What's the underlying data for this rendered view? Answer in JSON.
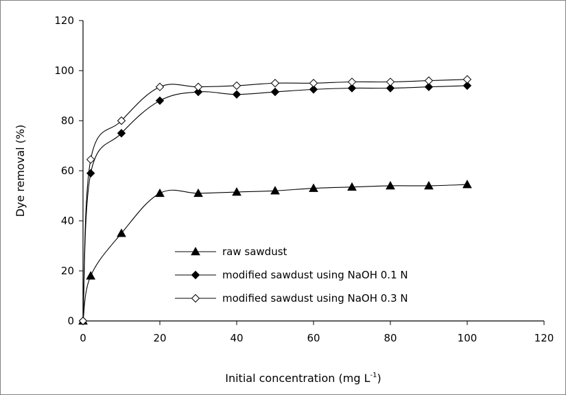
{
  "chart_data": {
    "type": "line",
    "title": "",
    "xlabel": "Initial concentration (mg L",
    "xlabel_sup": "-1",
    "xlabel_tail": ")",
    "ylabel": "Dye removal (%)",
    "xlim": [
      0,
      120
    ],
    "ylim": [
      0,
      120
    ],
    "xticks": [
      "0",
      "20",
      "40",
      "60",
      "80",
      "100",
      "120"
    ],
    "yticks": [
      "0",
      "20",
      "40",
      "60",
      "80",
      "100",
      "120"
    ],
    "grid": false,
    "legend_position": "bottom-center",
    "x": [
      0,
      2,
      10,
      20,
      30,
      40,
      50,
      60,
      70,
      80,
      90,
      100
    ],
    "series": [
      {
        "name": "raw sawdust",
        "marker": "filled-triangle",
        "values": [
          0,
          18,
          35,
          51,
          51,
          51.5,
          52,
          53,
          53.5,
          54,
          54,
          54.5
        ]
      },
      {
        "name": "modified sawdust using NaOH 0.1 N",
        "marker": "filled-diamond",
        "values": [
          0,
          59,
          75,
          88,
          91.5,
          90.5,
          91.5,
          92.5,
          93,
          93,
          93.5,
          94
        ]
      },
      {
        "name": "modified sawdust using NaOH 0.3 N",
        "marker": "open-diamond",
        "values": [
          0,
          64.5,
          80,
          93.5,
          93.5,
          94,
          95,
          95,
          95.5,
          95.5,
          96,
          96.5
        ]
      }
    ]
  }
}
